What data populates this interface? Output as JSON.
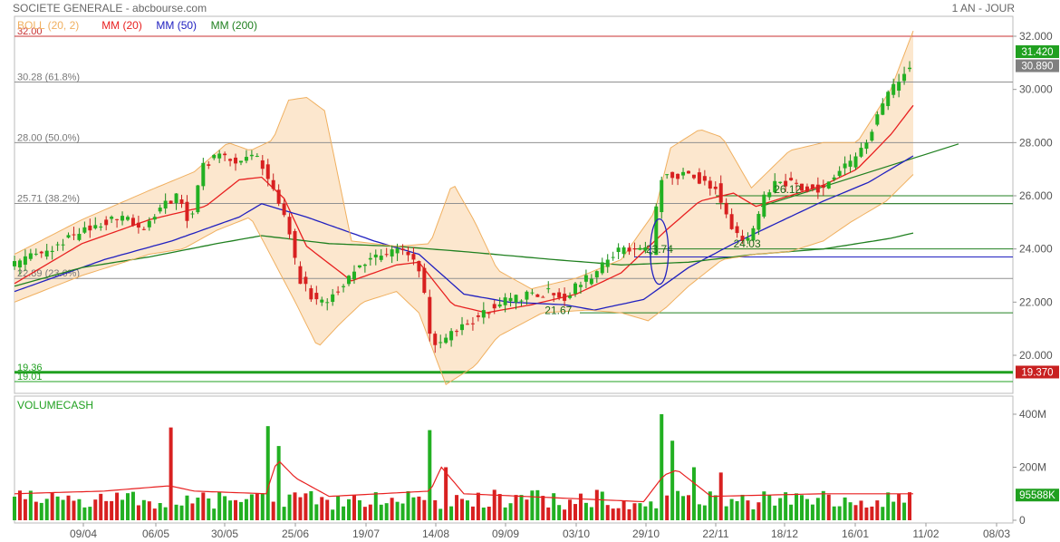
{
  "header": {
    "title": "SOCIETE GENERALE - abcbourse.com",
    "period": "1 AN - JOUR"
  },
  "legend": [
    {
      "name": "BOLL",
      "params": "(20, 2)",
      "color": "#f0b060"
    },
    {
      "name": "MM",
      "params": "(20)",
      "color": "#e82020"
    },
    {
      "name": "MM",
      "params": "(50)",
      "color": "#2020c0"
    },
    {
      "name": "MM",
      "params": "(200)",
      "color": "#208020"
    }
  ],
  "price_axis": [
    "32.000",
    "30.000",
    "28.000",
    "26.000",
    "24.000",
    "22.000",
    "20.000"
  ],
  "volume_panel": {
    "label": "VOLUMECASH",
    "axis": [
      "400M",
      "200M",
      "0"
    ],
    "last_value": "95588K"
  },
  "x_axis": [
    "09/04",
    "06/05",
    "30/05",
    "25/06",
    "19/07",
    "14/08",
    "09/09",
    "03/10",
    "29/10",
    "22/11",
    "18/12",
    "16/01",
    "11/02",
    "08/03"
  ],
  "levels": [
    {
      "value": 32.0,
      "label": "32.00",
      "color": "#c83030"
    },
    {
      "value": 30.28,
      "label": "30.28",
      "note": "(61.8%)",
      "color": "#909090"
    },
    {
      "value": 28.0,
      "label": "28.00",
      "note": "(50.0%)",
      "color": "#909090"
    },
    {
      "value": 25.71,
      "label": "25.71",
      "note": "(38.2%)",
      "color": "#909090"
    },
    {
      "value": 22.89,
      "label": "22.89",
      "note": "(23.6%)",
      "color": "#909090"
    },
    {
      "value": 19.36,
      "label": "19.36",
      "color": "#20a020"
    },
    {
      "value": 19.01,
      "label": "19.01",
      "color": "#20a020"
    }
  ],
  "annotations": [
    "23.74",
    "21.67",
    "24.03",
    "26.12"
  ],
  "price_tags": [
    {
      "text": "31.420",
      "bg": "#20a020"
    },
    {
      "text": "30.890",
      "bg": "#808080"
    },
    {
      "text": "19.370",
      "bg": "#c82020"
    }
  ],
  "chart_data": {
    "type": "candlestick",
    "title": "SOCIETE GENERALE",
    "ylim": [
      19.0,
      32.2
    ],
    "x": [
      "09/04",
      "06/05",
      "30/05",
      "25/06",
      "19/07",
      "14/08",
      "09/09",
      "03/10",
      "29/10",
      "22/11",
      "18/12",
      "16/01",
      "11/02",
      "08/03"
    ],
    "close_path": [
      [
        0,
        23.4
      ],
      [
        20,
        24.2
      ],
      [
        35,
        24.9
      ],
      [
        50,
        25.3
      ],
      [
        57,
        24.6
      ],
      [
        65,
        25.6
      ],
      [
        72,
        26.0
      ],
      [
        78,
        25.0
      ],
      [
        84,
        27.1
      ],
      [
        90,
        27.6
      ],
      [
        98,
        27.2
      ],
      [
        108,
        27.5
      ],
      [
        112,
        26.7
      ],
      [
        118,
        25.7
      ],
      [
        122,
        24.7
      ],
      [
        126,
        23.0
      ],
      [
        132,
        22.2
      ],
      [
        138,
        22.0
      ],
      [
        145,
        22.6
      ],
      [
        150,
        23.1
      ],
      [
        160,
        23.7
      ],
      [
        170,
        24.0
      ],
      [
        178,
        23.6
      ],
      [
        182,
        22.8
      ],
      [
        183,
        21.3
      ],
      [
        186,
        20.4
      ],
      [
        192,
        20.6
      ],
      [
        198,
        21.1
      ],
      [
        205,
        21.4
      ],
      [
        212,
        21.8
      ],
      [
        220,
        22.1
      ],
      [
        230,
        22.3
      ],
      [
        238,
        22.4
      ],
      [
        245,
        22.2
      ],
      [
        252,
        22.7
      ],
      [
        260,
        23.2
      ],
      [
        268,
        23.9
      ],
      [
        275,
        24.1
      ],
      [
        284,
        23.8
      ],
      [
        286,
        25.9
      ],
      [
        289,
        27.0
      ],
      [
        294,
        26.6
      ],
      [
        300,
        26.9
      ],
      [
        306,
        26.5
      ],
      [
        312,
        26.3
      ],
      [
        316,
        25.3
      ],
      [
        320,
        24.6
      ],
      [
        326,
        24.2
      ],
      [
        330,
        24.9
      ],
      [
        334,
        26.0
      ],
      [
        340,
        26.6
      ],
      [
        347,
        26.4
      ],
      [
        355,
        26.3
      ],
      [
        360,
        26.2
      ],
      [
        368,
        27.0
      ],
      [
        375,
        27.4
      ],
      [
        380,
        28.1
      ],
      [
        383,
        28.9
      ],
      [
        388,
        29.8
      ],
      [
        392,
        30.2
      ],
      [
        396,
        30.6
      ],
      [
        399,
        30.9
      ]
    ],
    "series": [
      {
        "name": "MM (20)",
        "color": "#e82020",
        "values": [
          [
            0,
            22.7
          ],
          [
            30,
            24.2
          ],
          [
            60,
            25.1
          ],
          [
            85,
            25.6
          ],
          [
            100,
            26.6
          ],
          [
            110,
            26.7
          ],
          [
            120,
            25.9
          ],
          [
            130,
            24.1
          ],
          [
            150,
            22.8
          ],
          [
            170,
            23.4
          ],
          [
            180,
            23.5
          ],
          [
            195,
            21.9
          ],
          [
            210,
            21.6
          ],
          [
            230,
            21.9
          ],
          [
            250,
            22.3
          ],
          [
            270,
            23.1
          ],
          [
            290,
            24.7
          ],
          [
            305,
            25.8
          ],
          [
            320,
            26.1
          ],
          [
            330,
            25.6
          ],
          [
            345,
            26.0
          ],
          [
            360,
            26.4
          ],
          [
            375,
            27.0
          ],
          [
            390,
            28.3
          ],
          [
            400,
            29.4
          ]
        ]
      },
      {
        "name": "MM (50)",
        "color": "#2020c0",
        "values": [
          [
            0,
            22.4
          ],
          [
            40,
            23.6
          ],
          [
            70,
            24.3
          ],
          [
            100,
            25.2
          ],
          [
            110,
            25.7
          ],
          [
            130,
            25.2
          ],
          [
            160,
            24.3
          ],
          [
            180,
            23.8
          ],
          [
            200,
            22.3
          ],
          [
            220,
            22.0
          ],
          [
            245,
            21.9
          ],
          [
            258,
            21.7
          ],
          [
            280,
            22.1
          ],
          [
            300,
            23.3
          ],
          [
            320,
            24.2
          ],
          [
            340,
            25.0
          ],
          [
            360,
            25.8
          ],
          [
            380,
            26.5
          ],
          [
            400,
            27.5
          ]
        ]
      },
      {
        "name": "MM (200)",
        "color": "#208020",
        "values": [
          [
            0,
            22.6
          ],
          [
            30,
            23.3
          ],
          [
            60,
            23.7
          ],
          [
            90,
            24.2
          ],
          [
            110,
            24.5
          ],
          [
            140,
            24.2
          ],
          [
            170,
            24.1
          ],
          [
            200,
            23.9
          ],
          [
            240,
            23.6
          ],
          [
            270,
            23.4
          ],
          [
            300,
            23.5
          ],
          [
            330,
            23.8
          ],
          [
            360,
            24.0
          ],
          [
            390,
            24.4
          ],
          [
            400,
            24.6
          ]
        ]
      },
      {
        "name": "BOLL upper",
        "color": "#f0b060",
        "values": [
          [
            0,
            23.8
          ],
          [
            30,
            25.1
          ],
          [
            60,
            26.2
          ],
          [
            80,
            26.9
          ],
          [
            95,
            28.0
          ],
          [
            105,
            27.7
          ],
          [
            115,
            28.1
          ],
          [
            122,
            29.6
          ],
          [
            130,
            29.7
          ],
          [
            138,
            29.2
          ],
          [
            150,
            24.3
          ],
          [
            170,
            24.1
          ],
          [
            185,
            24.2
          ],
          [
            195,
            26.5
          ],
          [
            205,
            25.0
          ],
          [
            215,
            23.2
          ],
          [
            230,
            22.5
          ],
          [
            250,
            22.9
          ],
          [
            270,
            23.6
          ],
          [
            285,
            25.4
          ],
          [
            292,
            27.8
          ],
          [
            305,
            28.5
          ],
          [
            315,
            28.2
          ],
          [
            328,
            26.3
          ],
          [
            345,
            27.7
          ],
          [
            360,
            28.0
          ],
          [
            375,
            28.0
          ],
          [
            390,
            30.0
          ],
          [
            400,
            32.2
          ]
        ]
      },
      {
        "name": "BOLL lower",
        "color": "#f0b060",
        "values": [
          [
            0,
            22.0
          ],
          [
            30,
            23.0
          ],
          [
            60,
            23.8
          ],
          [
            75,
            24.0
          ],
          [
            90,
            24.7
          ],
          [
            105,
            25.2
          ],
          [
            115,
            23.6
          ],
          [
            125,
            22.0
          ],
          [
            135,
            20.3
          ],
          [
            145,
            21.2
          ],
          [
            155,
            22.0
          ],
          [
            170,
            22.4
          ],
          [
            180,
            21.6
          ],
          [
            192,
            18.9
          ],
          [
            205,
            19.6
          ],
          [
            215,
            20.7
          ],
          [
            235,
            21.6
          ],
          [
            255,
            21.7
          ],
          [
            270,
            21.6
          ],
          [
            282,
            21.3
          ],
          [
            290,
            21.8
          ],
          [
            300,
            22.6
          ],
          [
            315,
            23.6
          ],
          [
            330,
            23.8
          ],
          [
            345,
            23.9
          ],
          [
            360,
            24.3
          ],
          [
            372,
            25.0
          ],
          [
            388,
            25.8
          ],
          [
            400,
            26.8
          ]
        ]
      }
    ],
    "volume": {
      "ylim": [
        0,
        400
      ],
      "spikes": [
        [
          69,
          350
        ],
        [
          112,
          355
        ],
        [
          117,
          280
        ],
        [
          185,
          340
        ],
        [
          193,
          200
        ],
        [
          289,
          400
        ],
        [
          292,
          300
        ],
        [
          302,
          200
        ],
        [
          314,
          180
        ]
      ],
      "average_path": [
        [
          0,
          100
        ],
        [
          40,
          110
        ],
        [
          69,
          130
        ],
        [
          80,
          110
        ],
        [
          112,
          100
        ],
        [
          117,
          230
        ],
        [
          125,
          160
        ],
        [
          140,
          90
        ],
        [
          185,
          110
        ],
        [
          190,
          200
        ],
        [
          200,
          100
        ],
        [
          280,
          70
        ],
        [
          289,
          170
        ],
        [
          295,
          190
        ],
        [
          310,
          90
        ],
        [
          360,
          100
        ],
        [
          400,
          100
        ]
      ]
    }
  }
}
